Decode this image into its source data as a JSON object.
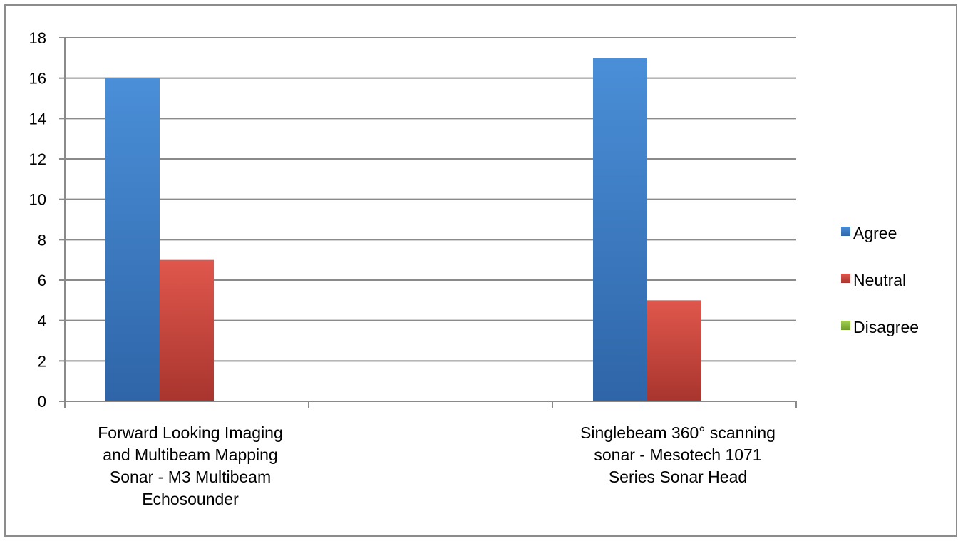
{
  "chart_data": {
    "type": "bar",
    "categories": [
      [
        "Forward Looking Imaging",
        "and Multibeam Mapping",
        "Sonar - M3 Multibeam",
        "Echosounder"
      ],
      [
        "Singlebeam 360° scanning",
        "sonar - Mesotech 1071",
        "Series Sonar Head"
      ]
    ],
    "series": [
      {
        "name": "Agree",
        "values": [
          16,
          17
        ],
        "color": "#3f7fc6"
      },
      {
        "name": "Neutral",
        "values": [
          7,
          5
        ],
        "color": "#c8433c"
      },
      {
        "name": "Disagree",
        "values": [
          0,
          0
        ],
        "color": "#8fbd3c"
      }
    ],
    "ylim": [
      0,
      18
    ],
    "yticks": [
      0,
      2,
      4,
      6,
      8,
      10,
      12,
      14,
      16,
      18
    ],
    "grid": true,
    "legend_position": "right",
    "title": "",
    "xlabel": "",
    "ylabel": ""
  }
}
